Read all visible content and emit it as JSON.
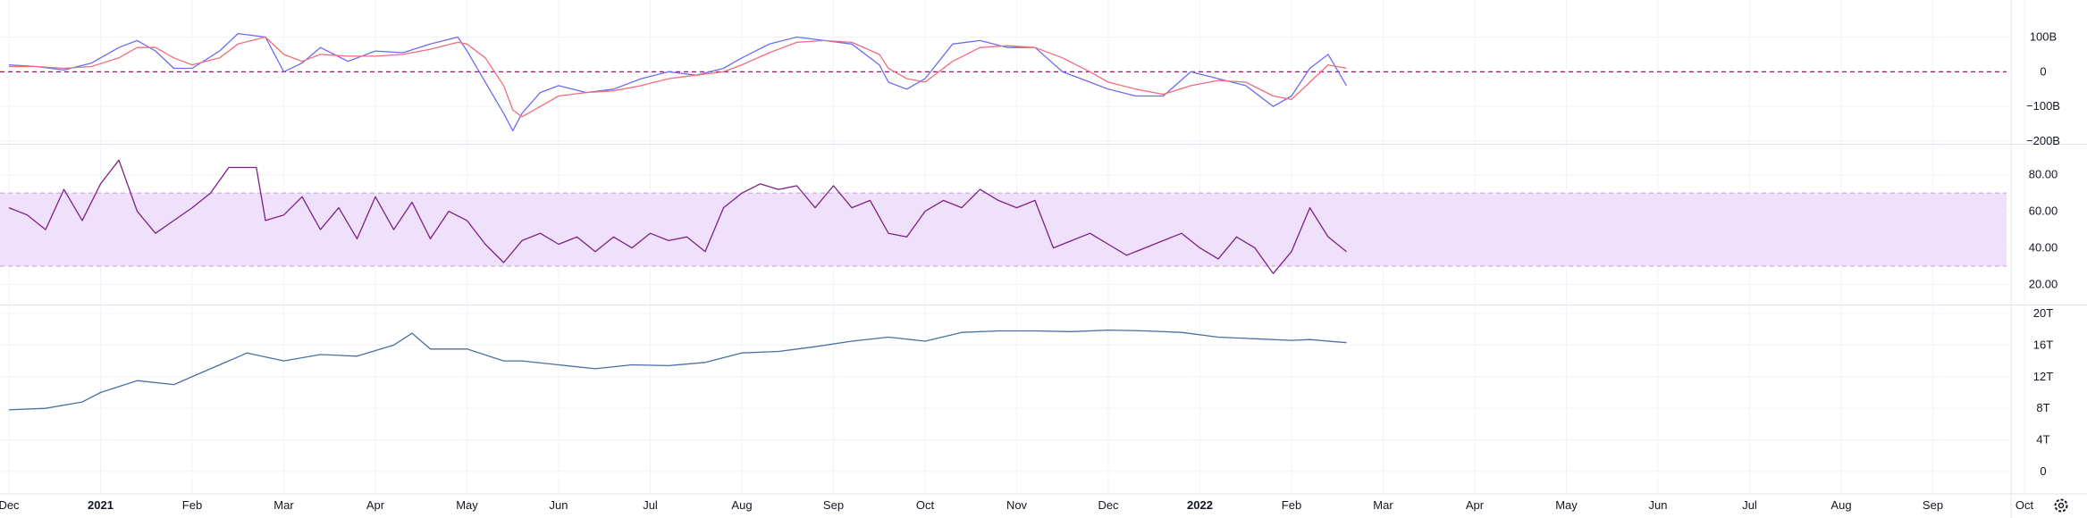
{
  "colors": {
    "grid": "#f0f3fa",
    "pane_border": "#e0e3eb",
    "macd": "#6c6cf0",
    "signal": "#f26d7d",
    "zero_line": "#8e1c6c",
    "rsi": "#7e1f86",
    "rsi_band": "#efe1fb",
    "rsi_band_border": "#c99be0",
    "supply": "#4a6fa5",
    "axis_text": "#131722"
  },
  "settings_icon": "gear-icon",
  "x_axis": {
    "labels": [
      {
        "text": "Dec",
        "bold": false
      },
      {
        "text": "2021",
        "bold": true
      },
      {
        "text": "Feb",
        "bold": false
      },
      {
        "text": "Mar",
        "bold": false
      },
      {
        "text": "Apr",
        "bold": false
      },
      {
        "text": "May",
        "bold": false
      },
      {
        "text": "Jun",
        "bold": false
      },
      {
        "text": "Jul",
        "bold": false
      },
      {
        "text": "Aug",
        "bold": false
      },
      {
        "text": "Sep",
        "bold": false
      },
      {
        "text": "Oct",
        "bold": false
      },
      {
        "text": "Nov",
        "bold": false
      },
      {
        "text": "Dec",
        "bold": false
      },
      {
        "text": "2022",
        "bold": true
      },
      {
        "text": "Feb",
        "bold": false
      },
      {
        "text": "Mar",
        "bold": false
      },
      {
        "text": "Apr",
        "bold": false
      },
      {
        "text": "May",
        "bold": false
      },
      {
        "text": "Jun",
        "bold": false
      },
      {
        "text": "Jul",
        "bold": false
      },
      {
        "text": "Aug",
        "bold": false
      },
      {
        "text": "Sep",
        "bold": false
      },
      {
        "text": "Oct",
        "bold": false
      }
    ]
  },
  "chart_data": [
    {
      "type": "line",
      "pane": "macd",
      "ylim": [
        -200,
        140
      ],
      "yticks": [
        {
          "value": 100,
          "label": "100B"
        },
        {
          "value": 0,
          "label": "0"
        },
        {
          "value": -100,
          "label": "−100B"
        },
        {
          "value": -200,
          "label": "−200B"
        }
      ],
      "reference_lines": [
        0
      ],
      "grid": true,
      "x_range": [
        0,
        22
      ],
      "series": [
        {
          "role": "macd",
          "x": [
            0,
            0.3,
            0.6,
            0.9,
            1.2,
            1.4,
            1.6,
            1.8,
            2.0,
            2.3,
            2.5,
            2.8,
            3.0,
            3.2,
            3.4,
            3.7,
            4.0,
            4.3,
            4.6,
            4.9,
            5.0,
            5.2,
            5.4,
            5.5,
            5.6,
            5.8,
            6.0,
            6.3,
            6.6,
            6.9,
            7.2,
            7.5,
            7.8,
            8.0,
            8.3,
            8.6,
            8.9,
            9.2,
            9.5,
            9.6,
            9.8,
            10.0,
            10.3,
            10.6,
            10.9,
            11.2,
            11.5,
            11.8,
            12.0,
            12.3,
            12.6,
            12.9,
            13.2,
            13.5,
            13.8,
            14.0,
            14.2,
            14.4,
            14.6
          ],
          "values": [
            20,
            15,
            5,
            25,
            70,
            90,
            60,
            10,
            10,
            60,
            110,
            100,
            0,
            25,
            70,
            30,
            60,
            55,
            80,
            100,
            60,
            -30,
            -120,
            -170,
            -120,
            -60,
            -40,
            -60,
            -50,
            -20,
            0,
            -10,
            10,
            40,
            80,
            100,
            90,
            80,
            20,
            -30,
            -50,
            -20,
            80,
            90,
            70,
            70,
            0,
            -30,
            -50,
            -70,
            -70,
            0,
            -20,
            -40,
            -100,
            -70,
            10,
            50,
            -40
          ]
        },
        {
          "role": "signal",
          "x": [
            0,
            0.3,
            0.6,
            0.9,
            1.2,
            1.4,
            1.6,
            1.8,
            2.0,
            2.3,
            2.5,
            2.8,
            3.0,
            3.2,
            3.4,
            3.7,
            4.0,
            4.3,
            4.6,
            4.9,
            5.0,
            5.2,
            5.4,
            5.5,
            5.6,
            5.8,
            6.0,
            6.3,
            6.6,
            6.9,
            7.2,
            7.5,
            7.8,
            8.0,
            8.3,
            8.6,
            8.9,
            9.2,
            9.5,
            9.6,
            9.8,
            10.0,
            10.3,
            10.6,
            10.9,
            11.2,
            11.5,
            11.8,
            12.0,
            12.3,
            12.6,
            12.9,
            13.2,
            13.5,
            13.8,
            14.0,
            14.2,
            14.4,
            14.6
          ],
          "values": [
            15,
            15,
            10,
            15,
            40,
            70,
            70,
            40,
            20,
            40,
            80,
            100,
            50,
            30,
            50,
            45,
            45,
            50,
            65,
            85,
            80,
            40,
            -40,
            -110,
            -130,
            -100,
            -70,
            -60,
            -55,
            -40,
            -20,
            -10,
            0,
            20,
            55,
            85,
            90,
            85,
            50,
            10,
            -20,
            -30,
            30,
            70,
            75,
            70,
            40,
            0,
            -30,
            -50,
            -65,
            -40,
            -25,
            -30,
            -70,
            -80,
            -30,
            20,
            10
          ]
        }
      ]
    },
    {
      "type": "line",
      "pane": "rsi",
      "ylim": [
        10,
        95
      ],
      "yticks": [
        {
          "value": 80,
          "label": "80.00"
        },
        {
          "value": 60,
          "label": "60.00"
        },
        {
          "value": 40,
          "label": "40.00"
        },
        {
          "value": 20,
          "label": "20.00"
        }
      ],
      "band": [
        30,
        70
      ],
      "grid": true,
      "x_range": [
        0,
        22
      ],
      "series": [
        {
          "role": "rsi",
          "x": [
            0,
            0.2,
            0.4,
            0.6,
            0.8,
            1.0,
            1.2,
            1.4,
            1.6,
            1.8,
            2.0,
            2.2,
            2.4,
            2.7,
            2.8,
            3.0,
            3.2,
            3.4,
            3.6,
            3.8,
            4.0,
            4.2,
            4.4,
            4.6,
            4.8,
            5.0,
            5.2,
            5.4,
            5.6,
            5.8,
            6.0,
            6.2,
            6.4,
            6.6,
            6.8,
            7.0,
            7.2,
            7.4,
            7.6,
            7.8,
            8.0,
            8.2,
            8.4,
            8.6,
            8.8,
            9.0,
            9.2,
            9.4,
            9.6,
            9.8,
            10.0,
            10.2,
            10.4,
            10.6,
            10.8,
            11.0,
            11.2,
            11.4,
            11.6,
            11.8,
            12.0,
            12.2,
            12.4,
            12.6,
            12.8,
            13.0,
            13.2,
            13.4,
            13.6,
            13.8,
            14.0,
            14.2,
            14.4,
            14.6
          ],
          "values": [
            62,
            58,
            50,
            72,
            55,
            75,
            88,
            60,
            48,
            55,
            62,
            70,
            84,
            84,
            55,
            58,
            68,
            50,
            62,
            45,
            68,
            50,
            65,
            45,
            60,
            55,
            42,
            32,
            44,
            48,
            42,
            46,
            38,
            46,
            40,
            48,
            44,
            46,
            38,
            62,
            70,
            75,
            72,
            74,
            62,
            74,
            62,
            66,
            48,
            46,
            60,
            66,
            62,
            72,
            66,
            62,
            66,
            40,
            44,
            48,
            42,
            36,
            40,
            44,
            48,
            40,
            34,
            46,
            40,
            26,
            38,
            62,
            46,
            38
          ]
        }
      ]
    },
    {
      "type": "line",
      "pane": "supply",
      "ylim": [
        -0.8,
        20
      ],
      "yticks": [
        {
          "value": 20,
          "label": "20T"
        },
        {
          "value": 16,
          "label": "16T"
        },
        {
          "value": 12,
          "label": "12T"
        },
        {
          "value": 8,
          "label": "8T"
        },
        {
          "value": 4,
          "label": "4T"
        },
        {
          "value": 0,
          "label": "0"
        }
      ],
      "grid": true,
      "x_range": [
        0,
        22
      ],
      "series": [
        {
          "role": "supply",
          "x": [
            0,
            0.4,
            0.8,
            1.0,
            1.4,
            1.8,
            2.2,
            2.6,
            3.0,
            3.4,
            3.8,
            4.2,
            4.4,
            4.6,
            5.0,
            5.4,
            5.6,
            6.0,
            6.4,
            6.8,
            7.2,
            7.6,
            8.0,
            8.4,
            8.8,
            9.2,
            9.6,
            10.0,
            10.4,
            10.8,
            11.2,
            11.6,
            12.0,
            12.4,
            12.8,
            13.2,
            13.6,
            14.0,
            14.2,
            14.6
          ],
          "values": [
            7.8,
            8.0,
            8.8,
            10.0,
            11.5,
            11.0,
            13.0,
            15.0,
            14.0,
            14.8,
            14.6,
            16.0,
            17.5,
            15.5,
            15.5,
            14.0,
            14.0,
            13.5,
            13.0,
            13.5,
            13.4,
            13.8,
            15.0,
            15.2,
            15.8,
            16.5,
            17.0,
            16.5,
            17.6,
            17.8,
            17.8,
            17.7,
            17.9,
            17.8,
            17.6,
            17.0,
            16.8,
            16.6,
            16.7,
            16.3
          ]
        }
      ]
    }
  ]
}
